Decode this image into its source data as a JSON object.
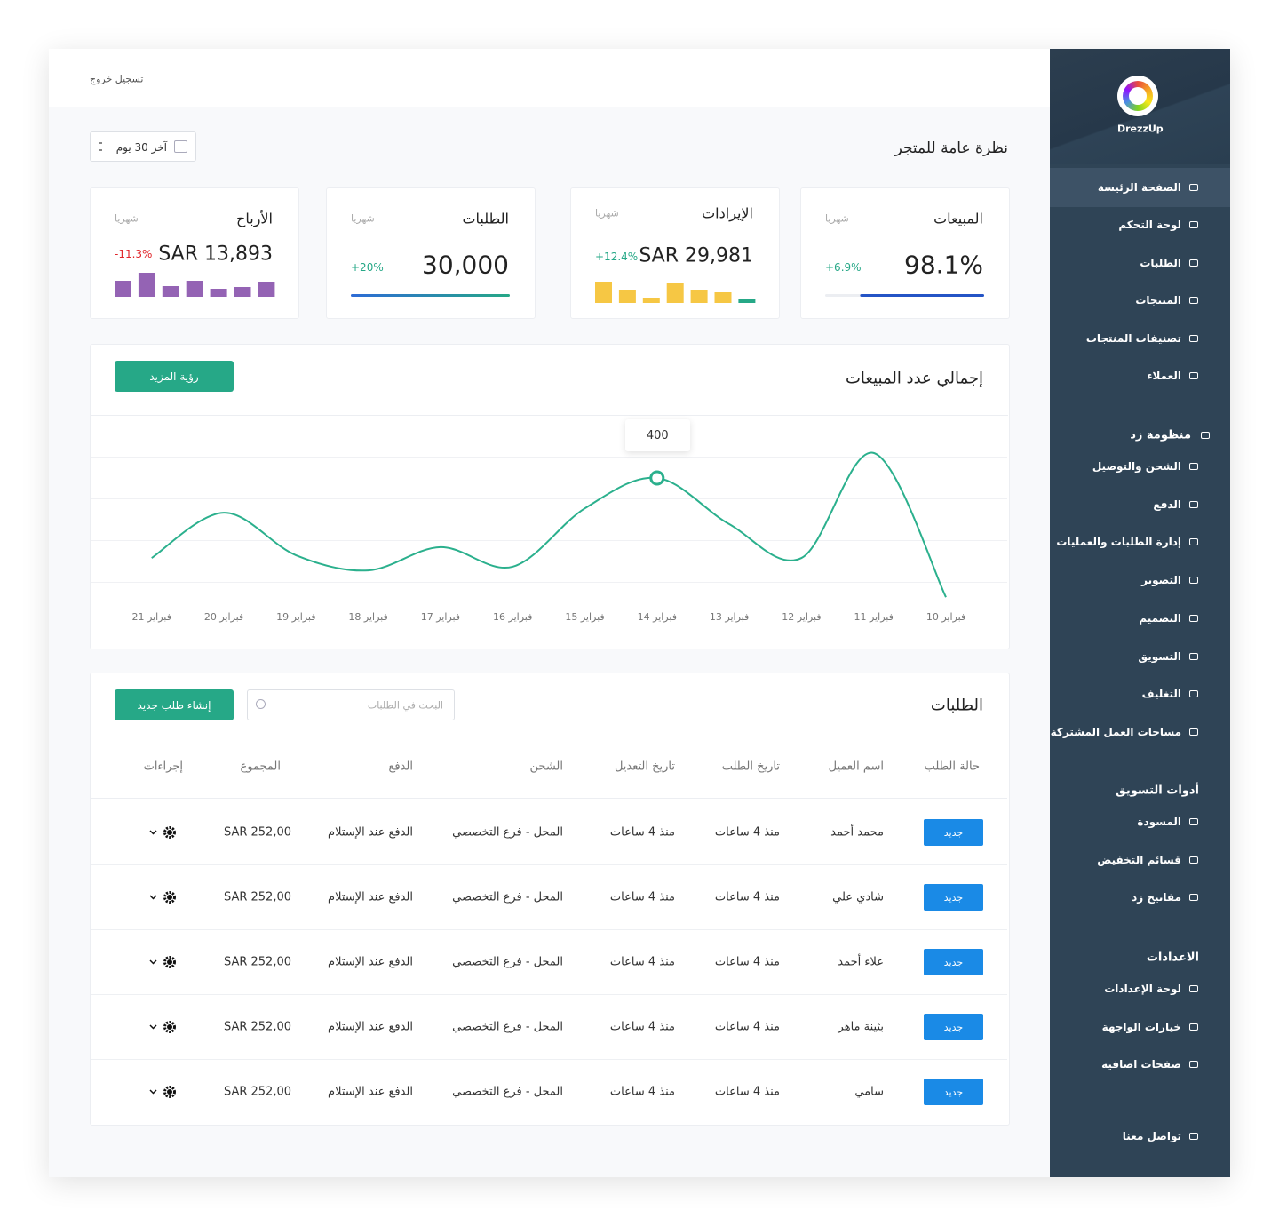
{
  "topbar": {
    "logout": "تسجيل خروج"
  },
  "sidebar": {
    "brand": "DrezzUp",
    "main": [
      "الصفحة الرئيسة",
      "لوحة التحكم",
      "الطلبات",
      "المنتجات",
      "تصنيفات المنتجات",
      "العملاء"
    ],
    "sections": [
      {
        "title": "منظومة زد",
        "items": [
          "الشحن والتوصيل",
          "الدفع",
          "إدارة الطلبات والعمليات",
          "التصوير",
          "التصميم",
          "التسويق",
          "التغليف",
          "مساحات العمل المشتركة"
        ]
      },
      {
        "title": "أدوات التسويق",
        "items": [
          "المسودة",
          "قسائم التخفيض",
          "مفاتيح زد"
        ]
      },
      {
        "title": "الاعدادات",
        "items": [
          "لوحة الإعدادات",
          "خيارات الواجهة",
          "صفحات اضافية"
        ]
      }
    ],
    "contact": "تواصل معنا"
  },
  "overview": {
    "title": "نظرة عامة للمتجر",
    "range": "آخر 30 يوم"
  },
  "stats": [
    {
      "title": "المبيعات",
      "period": "شهريا",
      "value": "98.1%",
      "change": "+6.9%",
      "progress": 78,
      "color": "#2454c6"
    },
    {
      "title": "الإيرادات",
      "period": "شهريا",
      "value": "SAR 29,981",
      "change": "+12.4%",
      "bars": [
        24,
        15,
        6,
        22,
        15,
        12,
        5
      ],
      "colors": [
        "#f6c744",
        "#f6c744",
        "#f6c744",
        "#f6c744",
        "#f6c744",
        "#f6c744",
        "#26a887"
      ]
    },
    {
      "title": "الطلبات",
      "period": "شهريا",
      "value": "30,000",
      "change": "+20%",
      "progress": 100,
      "color": "#26a887"
    },
    {
      "title": "الأرباح",
      "period": "شهريا",
      "value": "SAR 13,893",
      "change": "-11.3%",
      "bars": [
        18,
        27,
        12,
        18,
        9,
        11,
        17
      ],
      "colors": [
        "#9463b4",
        "#9463b4",
        "#9463b4",
        "#9463b4",
        "#9463b4",
        "#9463b4",
        "#9463b4"
      ]
    }
  ],
  "chart": {
    "type": "line",
    "title": "إجمالي عدد المبيعات",
    "button": "رؤية المزيد",
    "categories": [
      "10 فبراير",
      "11 فبراير",
      "12 فبراير",
      "13 فبراير",
      "14 فبراير",
      "15 فبراير",
      "16 فبراير",
      "17 فبراير",
      "18 فبراير",
      "19 فبراير",
      "20 فبراير",
      "21 فبراير"
    ],
    "values": [
      47,
      474,
      163,
      263,
      400,
      310,
      137,
      195,
      126,
      171,
      297,
      163
    ],
    "ylim": [
      0,
      600
    ],
    "color": "#2bb08d"
  },
  "orders": {
    "title": "الطلبات",
    "search_placeholder": "البحث في الطلبات",
    "create": "إنشاء طلب جديد",
    "columns": [
      "حالة الطلب",
      "اسم العميل",
      "تاريخ الطلب",
      "تاريخ التعديل",
      "الشحن",
      "الدفع",
      "المجموع",
      "إجراءات"
    ],
    "rows": [
      [
        "جديد",
        "محمد أحمد",
        "منذ 4 ساعات",
        "منذ 4 ساعات",
        "المحل - فرع التخصصي",
        "الدفع عند الإستلام",
        "SAR 252,00"
      ],
      [
        "جديد",
        "شادي علي",
        "منذ 4 ساعات",
        "منذ 4 ساعات",
        "المحل - فرع التخصصي",
        "الدفع عند الإستلام",
        "SAR 252,00"
      ],
      [
        "جديد",
        "علاء أحمد",
        "منذ 4 ساعات",
        "منذ 4 ساعات",
        "المحل - فرع التخصصي",
        "الدفع عند الإستلام",
        "SAR 252,00"
      ],
      [
        "جديد",
        "بثينة ماهر",
        "منذ 4 ساعات",
        "منذ 4 ساعات",
        "المحل - فرع التخصصي",
        "الدفع عند الإستلام",
        "SAR 252,00"
      ],
      [
        "جديد",
        "سامي",
        "منذ 4 ساعات",
        "منذ 4 ساعات",
        "المحل - فرع التخصصي",
        "الدفع عند الإستلام",
        "SAR 252,00"
      ]
    ]
  }
}
